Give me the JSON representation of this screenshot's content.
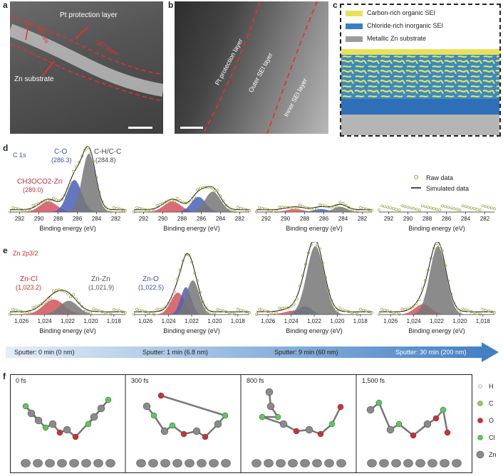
{
  "panels": {
    "a": {
      "label": "a",
      "pt": "Pt protection layer",
      "zn": "Zn substrate",
      "thickness": "~60 nm",
      "sei": "SEI layer"
    },
    "b": {
      "label": "b",
      "pt": "Pt protection layer",
      "outer": "Outer SEI layer",
      "inner": "Inner SEI layer"
    },
    "c": {
      "label": "c",
      "legend": [
        {
          "label": "Carbon-rich organic SEI",
          "color": "#e6e35a"
        },
        {
          "label": "Chloride-rich inorganic SEI",
          "color": "#3b7ec4"
        },
        {
          "label": "Metallic Zn substrate",
          "color": "#9c9c9c"
        }
      ]
    },
    "d": {
      "label": "d",
      "element": "C 1s",
      "peaks": [
        {
          "name": "C-O",
          "energy": "(286.3)",
          "color": "#3b4fa8"
        },
        {
          "name": "C-H/C-C",
          "energy": "(284.8)",
          "color": "#555555"
        },
        {
          "name": "CH3OCO2-Zn",
          "energy": "(289.0)",
          "color": "#c0303a"
        }
      ],
      "legend": {
        "raw": "Raw data",
        "sim": "Simulated data"
      },
      "xlabel": "Binding energy (eV)",
      "ticks": [
        "292",
        "290",
        "288",
        "286",
        "284",
        "282"
      ]
    },
    "e": {
      "label": "e",
      "element": "Zn 2p3/2",
      "peaks": [
        {
          "name": "Zn-Cl",
          "energy": "(1,023.2)",
          "color": "#c0303a"
        },
        {
          "name": "Zn-Zn",
          "energy": "(1,021.9)",
          "color": "#555555"
        },
        {
          "name": "Zn-O",
          "energy": "(1,022.5)",
          "color": "#3b4fa8"
        }
      ],
      "xlabel": "Binding energy (eV)",
      "ticks": [
        "1,026",
        "1,024",
        "1,022",
        "1,020",
        "1,018"
      ]
    },
    "sputter": [
      "Sputter: 0 min (0 nm)",
      "Sputter: 1 min (6.8 nm)",
      "Sputter: 9 min (60 nm)",
      "Sputter: 30 min (200 nm)"
    ],
    "f": {
      "label": "f",
      "times": [
        "0 fs",
        "300 fs",
        "800 fs",
        "1,500 fs"
      ],
      "legend": [
        {
          "label": "H",
          "color": "#e8e8e8"
        },
        {
          "label": "C",
          "color": "#8fce5a"
        },
        {
          "label": "O",
          "color": "#d03030"
        },
        {
          "label": "Cl",
          "color": "#5cc85c"
        },
        {
          "label": "Zn",
          "color": "#8a8a8a"
        }
      ]
    }
  },
  "chart_data": [
    {
      "type": "line",
      "panel": "d",
      "subplot": "Sputter 0 min",
      "xlabel": "Binding energy (eV)",
      "xlim": [
        293,
        281
      ],
      "series": [
        {
          "name": "C-O",
          "peak": 286.3
        },
        {
          "name": "C-H/C-C",
          "peak": 284.8
        },
        {
          "name": "CH3OCO2-Zn",
          "peak": 289.0
        }
      ]
    },
    {
      "type": "line",
      "panel": "d",
      "subplot": "Sputter 1 min",
      "xlabel": "Binding energy (eV)",
      "xlim": [
        293,
        281
      ]
    },
    {
      "type": "line",
      "panel": "d",
      "subplot": "Sputter 9 min",
      "xlabel": "Binding energy (eV)",
      "xlim": [
        293,
        281
      ]
    },
    {
      "type": "scatter",
      "panel": "d",
      "subplot": "Sputter 30 min",
      "xlabel": "Binding energy (eV)",
      "xlim": [
        293,
        281
      ]
    },
    {
      "type": "line",
      "panel": "e",
      "subplot": "Sputter 0 min",
      "xlabel": "Binding energy (eV)",
      "xlim": [
        1027,
        1017
      ],
      "series": [
        {
          "name": "Zn-Cl",
          "peak": 1023.2
        },
        {
          "name": "Zn-Zn",
          "peak": 1021.9
        }
      ]
    },
    {
      "type": "line",
      "panel": "e",
      "subplot": "Sputter 1 min",
      "xlabel": "Binding energy (eV)",
      "xlim": [
        1027,
        1017
      ],
      "series": [
        {
          "name": "Zn-O",
          "peak": 1022.5
        }
      ]
    },
    {
      "type": "line",
      "panel": "e",
      "subplot": "Sputter 9 min",
      "xlabel": "Binding energy (eV)",
      "xlim": [
        1027,
        1017
      ]
    },
    {
      "type": "line",
      "panel": "e",
      "subplot": "Sputter 30 min",
      "xlabel": "Binding energy (eV)",
      "xlim": [
        1027,
        1017
      ]
    }
  ]
}
